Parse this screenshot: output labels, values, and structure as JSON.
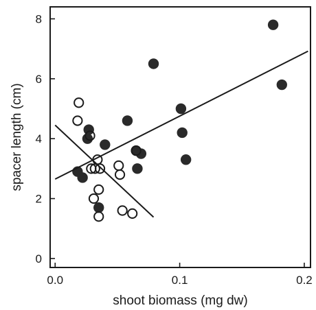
{
  "chart_data": {
    "type": "scatter",
    "xlabel": "shoot biomass (mg dw)",
    "ylabel": "spacer length (cm)",
    "xlim": [
      -0.004,
      0.205
    ],
    "ylim": [
      -0.3,
      8.4
    ],
    "x_ticks": [
      {
        "value": 0.0,
        "label": "0.0"
      },
      {
        "value": 0.1,
        "label": "0.1"
      },
      {
        "value": 0.2,
        "label": "0.2"
      }
    ],
    "y_ticks": [
      {
        "value": 0,
        "label": "0"
      },
      {
        "value": 2,
        "label": "2"
      },
      {
        "value": 4,
        "label": "4"
      },
      {
        "value": 6,
        "label": "6"
      },
      {
        "value": 8,
        "label": "8"
      }
    ],
    "grid": false,
    "legend": "none",
    "colors": {
      "filled": "#2a2a2a",
      "open_stroke": "#1a1a1a",
      "line": "#1a1a1a"
    },
    "series": [
      {
        "marker": "filled-circle",
        "points": [
          {
            "x": 0.018,
            "y": 2.9
          },
          {
            "x": 0.022,
            "y": 2.7
          },
          {
            "x": 0.026,
            "y": 4.0
          },
          {
            "x": 0.027,
            "y": 4.3
          },
          {
            "x": 0.035,
            "y": 1.7
          },
          {
            "x": 0.04,
            "y": 3.8
          },
          {
            "x": 0.058,
            "y": 4.6
          },
          {
            "x": 0.065,
            "y": 3.6
          },
          {
            "x": 0.066,
            "y": 3.0
          },
          {
            "x": 0.069,
            "y": 3.5
          },
          {
            "x": 0.079,
            "y": 6.5
          },
          {
            "x": 0.101,
            "y": 5.0
          },
          {
            "x": 0.102,
            "y": 4.2
          },
          {
            "x": 0.105,
            "y": 3.3
          },
          {
            "x": 0.175,
            "y": 7.8
          },
          {
            "x": 0.182,
            "y": 5.8
          }
        ]
      },
      {
        "marker": "open-circle",
        "points": [
          {
            "x": 0.018,
            "y": 4.6
          },
          {
            "x": 0.019,
            "y": 5.2
          },
          {
            "x": 0.028,
            "y": 4.1
          },
          {
            "x": 0.029,
            "y": 3.0
          },
          {
            "x": 0.031,
            "y": 2.0
          },
          {
            "x": 0.032,
            "y": 3.0
          },
          {
            "x": 0.034,
            "y": 3.3
          },
          {
            "x": 0.035,
            "y": 2.3
          },
          {
            "x": 0.035,
            "y": 1.4
          },
          {
            "x": 0.036,
            "y": 3.0
          },
          {
            "x": 0.051,
            "y": 3.1
          },
          {
            "x": 0.052,
            "y": 2.8
          },
          {
            "x": 0.054,
            "y": 1.6
          },
          {
            "x": 0.062,
            "y": 1.5
          },
          {
            "x": 0.065,
            "y": 3.6
          }
        ]
      }
    ],
    "trend_lines": [
      {
        "x1": 0.0,
        "y1": 2.65,
        "x2": 0.203,
        "y2": 6.92
      },
      {
        "x1": 0.0,
        "y1": 4.45,
        "x2": 0.079,
        "y2": 1.38
      }
    ]
  }
}
